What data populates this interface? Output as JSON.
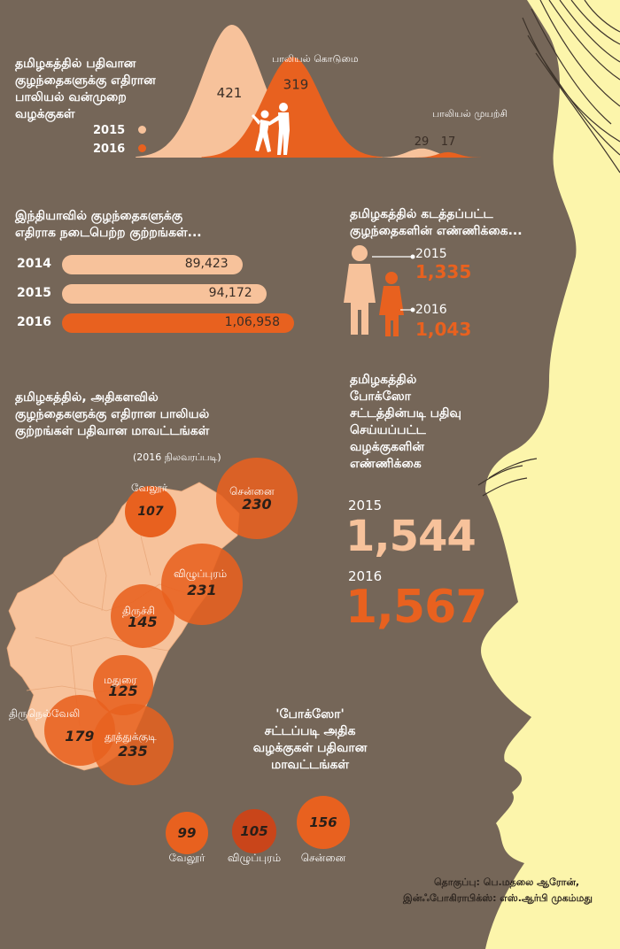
{
  "colors": {
    "background": "#756658",
    "peach": "#f7c29b",
    "orange": "#e8611f",
    "yellow": "#fcf5ab",
    "white": "#ffffff"
  },
  "chart_data": [
    {
      "type": "area",
      "title": "தமிழகத்தில் பதிவான குழந்தைகளுக்கு எதிரான பாலியல் வன்முறை வழக்குகள்",
      "legend": [
        "2015",
        "2016"
      ],
      "categories": [
        "பாலியல் கொடுமை",
        "பாலியல் முயற்சி"
      ],
      "series": [
        {
          "name": "2015",
          "values": [
            421,
            29
          ]
        },
        {
          "name": "2016",
          "values": [
            319,
            17
          ]
        }
      ]
    },
    {
      "type": "bar",
      "title": "இந்தியாவில் குழந்தைகளுக்கு எதிராக நடைபெற்ற குற்றங்கள்...",
      "categories": [
        "2014",
        "2015",
        "2016"
      ],
      "values": [
        89423,
        94172,
        106958
      ],
      "value_labels": [
        "89,423",
        "94,172",
        "1,06,958"
      ]
    },
    {
      "type": "bar",
      "title": "தமிழகத்தில் கடத்தப்பட்ட குழந்தைகளின் எண்ணிக்கை...",
      "categories": [
        "2015",
        "2016"
      ],
      "values": [
        1335,
        1043
      ],
      "value_labels": [
        "1,335",
        "1,043"
      ]
    },
    {
      "type": "scatter",
      "title": "தமிழகத்தில், அதிகளவில் குழந்தைகளுக்கு எதிரான பாலியல் குற்றங்கள் பதிவான மாவட்டங்கள்",
      "subtitle": "(2016 நிலவரப்படி)",
      "points": [
        {
          "name": "வேலூர்",
          "value": 107
        },
        {
          "name": "சென்னை",
          "value": 230
        },
        {
          "name": "விழுப்புரம்",
          "value": 231
        },
        {
          "name": "திருச்சி",
          "value": 145
        },
        {
          "name": "மதுரை",
          "value": 125
        },
        {
          "name": "திருநெல்வேலி",
          "value": 179
        },
        {
          "name": "தூத்துக்குடி",
          "value": 235
        }
      ]
    },
    {
      "type": "table",
      "title": "தமிழகத்தில் போக்ஸோ சட்டத்தின்படி பதிவு செய்யப்பட்ட வழக்குகளின் எண்ணிக்கை",
      "categories": [
        "2015",
        "2016"
      ],
      "values": [
        1544,
        1567
      ],
      "value_labels": [
        "1,544",
        "1,567"
      ]
    },
    {
      "type": "scatter",
      "title": "'போக்ஸோ' சட்டப்படி அதிக வழக்குகள் பதிவான மாவட்டங்கள்",
      "points": [
        {
          "name": "வேலூர்",
          "value": 99
        },
        {
          "name": "விழுப்புரம்",
          "value": 105
        },
        {
          "name": "சென்னை",
          "value": 156
        }
      ]
    }
  ],
  "credits": {
    "line1": "தொகுப்பு: பெ.மதலை ஆரோன்,",
    "line2": "இன்ஃபோகிராபிக்ஸ்: எஸ்.ஆர்பி முகம்மது"
  }
}
